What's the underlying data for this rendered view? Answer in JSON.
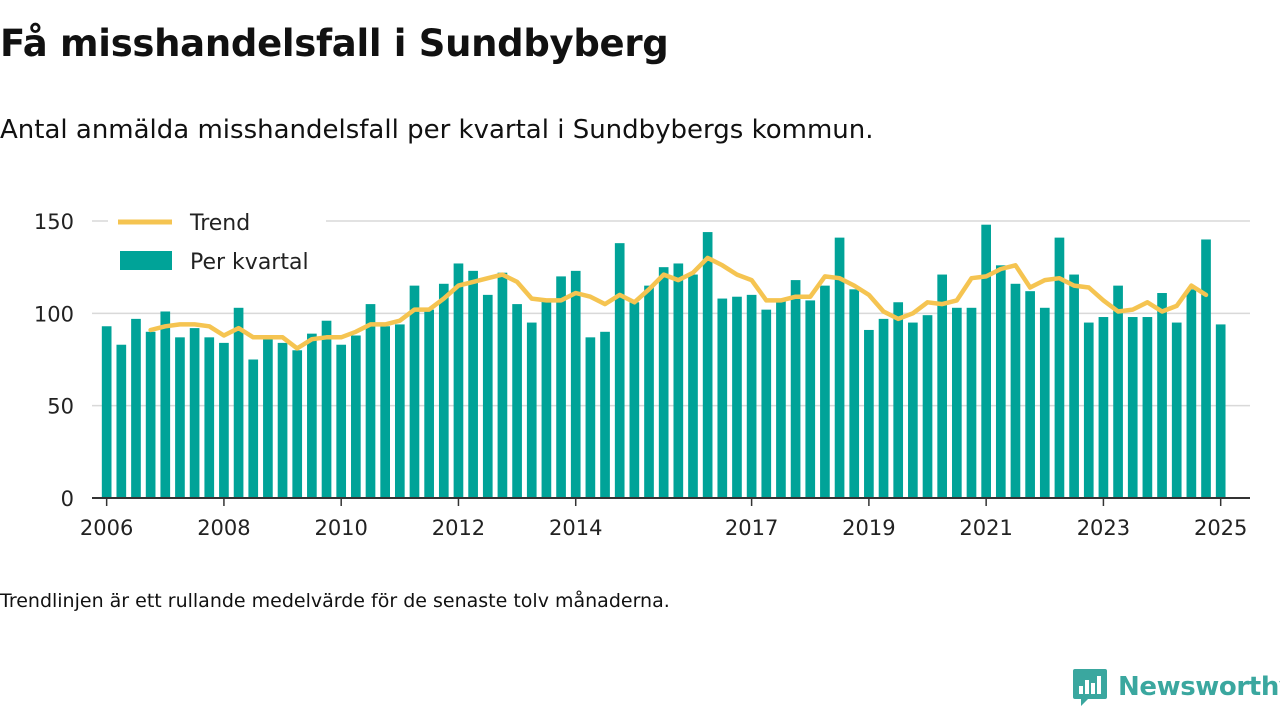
{
  "title": "Få misshandelsfall i Sundbyberg",
  "subtitle": "Antal anmälda misshandelsfall per kvartal i Sundbybergs kommun.",
  "footnote": "Trendlinjen är ett rullande medelvärde för de senaste tolv månaderna.",
  "brand": {
    "name": "Newsworthy",
    "icon": "newsworthy-chart-icon"
  },
  "colors": {
    "bars": "#00a398",
    "trend": "#f5c451",
    "grid": "#d9d9d9",
    "axis": "#333333",
    "brand": "#3aa79f"
  },
  "chart_data": {
    "type": "bar",
    "ylim": [
      0,
      150
    ],
    "yticks": [
      0,
      50,
      100,
      150
    ],
    "xlim": [
      2005.75,
      2025.5
    ],
    "xticks": [
      {
        "value": 2006.0,
        "label": "2006"
      },
      {
        "value": 2008.0,
        "label": "2008"
      },
      {
        "value": 2010.0,
        "label": "2010"
      },
      {
        "value": 2012.0,
        "label": "2012"
      },
      {
        "value": 2014.0,
        "label": "2014"
      },
      {
        "value": 2017.0,
        "label": "2017"
      },
      {
        "value": 2019.0,
        "label": "2019"
      },
      {
        "value": 2021.0,
        "label": "2021"
      },
      {
        "value": 2023.0,
        "label": "2023"
      },
      {
        "value": 2025.0,
        "label": "2025"
      }
    ],
    "grid": true,
    "legend_position": "top-left",
    "series": [
      {
        "name": "Per kvartal",
        "type": "bar",
        "x_start": 2006.0,
        "x_step": 0.25,
        "values": [
          93,
          83,
          97,
          90,
          101,
          87,
          92,
          87,
          84,
          103,
          75,
          86,
          84,
          80,
          89,
          96,
          83,
          88,
          105,
          93,
          94,
          115,
          102,
          116,
          127,
          123,
          110,
          122,
          105,
          95,
          108,
          120,
          123,
          87,
          90,
          138,
          106,
          115,
          125,
          127,
          121,
          144,
          108,
          109,
          110,
          102,
          107,
          118,
          107,
          115,
          141,
          113,
          91,
          97,
          106,
          95,
          99,
          121,
          103,
          103,
          148,
          126,
          116,
          112,
          103,
          141,
          121,
          95,
          98,
          115,
          98,
          98,
          111,
          95,
          113,
          140,
          94
        ]
      },
      {
        "name": "Trend",
        "type": "line",
        "x_start": 2006.75,
        "x_step": 0.25,
        "values": [
          91,
          93,
          94,
          94,
          93,
          88,
          92,
          87,
          87,
          87,
          81,
          86,
          87,
          87,
          90,
          94,
          94,
          96,
          102,
          102,
          108,
          115,
          117,
          119,
          121,
          117,
          108,
          107,
          107,
          111,
          109,
          105,
          110,
          106,
          113,
          121,
          118,
          122,
          130,
          126,
          121,
          118,
          107,
          107,
          109,
          109,
          120,
          119,
          115,
          110,
          101,
          97,
          100,
          106,
          105,
          107,
          119,
          120,
          124,
          126,
          114,
          118,
          119,
          115,
          114,
          107,
          101,
          102,
          106,
          101,
          104,
          115,
          110
        ]
      }
    ]
  }
}
